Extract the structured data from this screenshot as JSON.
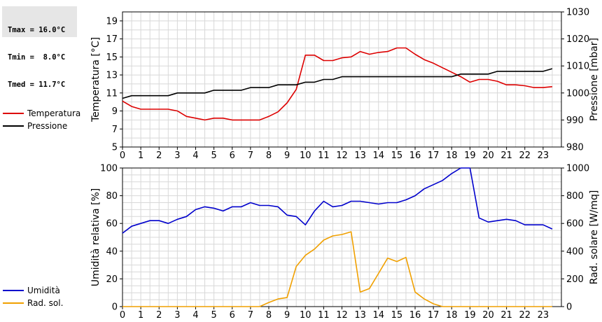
{
  "stats": {
    "tmax": "Tmax = 16.0°C",
    "tmin": "Tmin =  8.0°C",
    "tmed": "Tmed = 11.7°C"
  },
  "legend_top": [
    {
      "label": "Temperatura",
      "color": "#dd0000"
    },
    {
      "label": "Pressione",
      "color": "#000000"
    }
  ],
  "legend_bottom": [
    {
      "label": "Umidità",
      "color": "#0000cc"
    },
    {
      "label": "Rad. sol.",
      "color": "#f0a000"
    }
  ],
  "chart_data": [
    {
      "type": "line",
      "xlim": [
        0,
        24
      ],
      "xticks": [
        0,
        1,
        2,
        3,
        4,
        5,
        6,
        7,
        8,
        9,
        10,
        11,
        12,
        13,
        14,
        15,
        16,
        17,
        18,
        19,
        20,
        21,
        22,
        23
      ],
      "ylabel": "Temperatura [°C]",
      "ylim": [
        5,
        20
      ],
      "yticks": [
        5,
        7,
        9,
        11,
        13,
        15,
        17,
        19
      ],
      "y2label": "Pressione [mbar]",
      "y2lim": [
        980,
        1030
      ],
      "y2ticks": [
        980,
        990,
        1000,
        1010,
        1020,
        1030
      ],
      "grid": true,
      "series": [
        {
          "name": "Temperatura",
          "axis": "left",
          "color": "#dd0000",
          "x": [
            0,
            0.5,
            1,
            1.5,
            2,
            2.5,
            3,
            3.5,
            4,
            4.5,
            5,
            5.5,
            6,
            6.5,
            7,
            7.5,
            8,
            8.5,
            9,
            9.5,
            10,
            10.5,
            11,
            11.5,
            12,
            12.5,
            13,
            13.5,
            14,
            14.5,
            15,
            15.5,
            16,
            16.5,
            17,
            17.5,
            18,
            18.5,
            19,
            19.5,
            20,
            20.5,
            21,
            21.5,
            22,
            22.5,
            23,
            23.5
          ],
          "y": [
            10.1,
            9.5,
            9.2,
            9.2,
            9.2,
            9.2,
            9.0,
            8.4,
            8.2,
            8.0,
            8.2,
            8.2,
            8.0,
            8.0,
            8.0,
            8.0,
            8.4,
            8.9,
            9.9,
            11.4,
            15.2,
            15.2,
            14.6,
            14.6,
            14.9,
            15.0,
            15.6,
            15.3,
            15.5,
            15.6,
            16.0,
            16.0,
            15.3,
            14.7,
            14.3,
            13.8,
            13.3,
            12.8,
            12.2,
            12.5,
            12.5,
            12.3,
            11.9,
            11.9,
            11.8,
            11.6,
            11.6,
            11.7
          ]
        },
        {
          "name": "Pressione",
          "axis": "right",
          "color": "#000000",
          "x": [
            0,
            0.5,
            1,
            1.5,
            2,
            2.5,
            3,
            3.5,
            4,
            4.5,
            5,
            5.5,
            6,
            6.5,
            7,
            7.5,
            8,
            8.5,
            9,
            9.5,
            10,
            10.5,
            11,
            11.5,
            12,
            12.5,
            13,
            13.5,
            14,
            14.5,
            15,
            15.5,
            16,
            16.5,
            17,
            17.5,
            18,
            18.5,
            19,
            19.5,
            20,
            20.5,
            21,
            21.5,
            22,
            22.5,
            23,
            23.5
          ],
          "y": [
            998,
            999,
            999,
            999,
            999,
            999,
            1000,
            1000,
            1000,
            1000,
            1001,
            1001,
            1001,
            1001,
            1002,
            1002,
            1002,
            1003,
            1003,
            1003,
            1004,
            1004,
            1005,
            1005,
            1006,
            1006,
            1006,
            1006,
            1006,
            1006,
            1006,
            1006,
            1006,
            1006,
            1006,
            1006,
            1006,
            1007,
            1007,
            1007,
            1007,
            1008,
            1008,
            1008,
            1008,
            1008,
            1008,
            1009
          ]
        }
      ]
    },
    {
      "type": "line",
      "xlim": [
        0,
        24
      ],
      "xticks": [
        0,
        1,
        2,
        3,
        4,
        5,
        6,
        7,
        8,
        9,
        10,
        11,
        12,
        13,
        14,
        15,
        16,
        17,
        18,
        19,
        20,
        21,
        22,
        23
      ],
      "ylabel": "Umidità relativa [%]",
      "ylim": [
        0,
        100
      ],
      "yticks": [
        0,
        20,
        40,
        60,
        80,
        100
      ],
      "y2label": "Rad. solare [W/mq]",
      "y2lim": [
        0,
        1000
      ],
      "y2ticks": [
        0,
        200,
        400,
        600,
        800,
        1000
      ],
      "grid": true,
      "series": [
        {
          "name": "Umidità",
          "axis": "left",
          "color": "#0000cc",
          "x": [
            0,
            0.5,
            1,
            1.5,
            2,
            2.5,
            3,
            3.5,
            4,
            4.5,
            5,
            5.5,
            6,
            6.5,
            7,
            7.5,
            8,
            8.5,
            9,
            9.5,
            10,
            10.5,
            11,
            11.5,
            12,
            12.5,
            13,
            13.5,
            14,
            14.5,
            15,
            15.5,
            16,
            16.5,
            17,
            17.5,
            18,
            18.5,
            19,
            19.5,
            20,
            20.5,
            21,
            21.5,
            22,
            22.5,
            23,
            23.5
          ],
          "y": [
            53,
            58,
            60,
            62,
            62,
            60,
            63,
            65,
            70,
            72,
            71,
            69,
            72,
            72,
            75,
            73,
            73,
            72,
            66,
            65,
            59,
            69,
            76,
            72,
            73,
            76,
            76,
            75,
            74,
            75,
            75,
            77,
            80,
            85,
            88,
            91,
            96,
            100,
            100,
            64,
            61,
            62,
            63,
            62,
            59,
            59,
            59,
            56
          ]
        },
        {
          "name": "Rad. sol.",
          "axis": "right",
          "color": "#f0a000",
          "x": [
            0,
            0.5,
            1,
            1.5,
            2,
            2.5,
            3,
            3.5,
            4,
            4.5,
            5,
            5.5,
            6,
            6.5,
            7,
            7.5,
            8,
            8.5,
            9,
            9.5,
            10,
            10.5,
            11,
            11.5,
            12,
            12.5,
            13,
            13.5,
            14,
            14.5,
            15,
            15.5,
            16,
            16.5,
            17,
            17.5,
            18,
            18.5,
            19,
            19.5,
            20,
            20.5,
            21,
            21.5,
            22,
            22.5,
            23,
            23.5
          ],
          "y": [
            0,
            0,
            0,
            0,
            0,
            0,
            0,
            0,
            0,
            0,
            0,
            0,
            0,
            0,
            0,
            0,
            30,
            55,
            65,
            290,
            370,
            415,
            480,
            510,
            520,
            540,
            105,
            130,
            240,
            350,
            325,
            355,
            105,
            55,
            20,
            0,
            0,
            0,
            0,
            0,
            0,
            0,
            0,
            0,
            0,
            0,
            0,
            0
          ]
        }
      ]
    }
  ]
}
